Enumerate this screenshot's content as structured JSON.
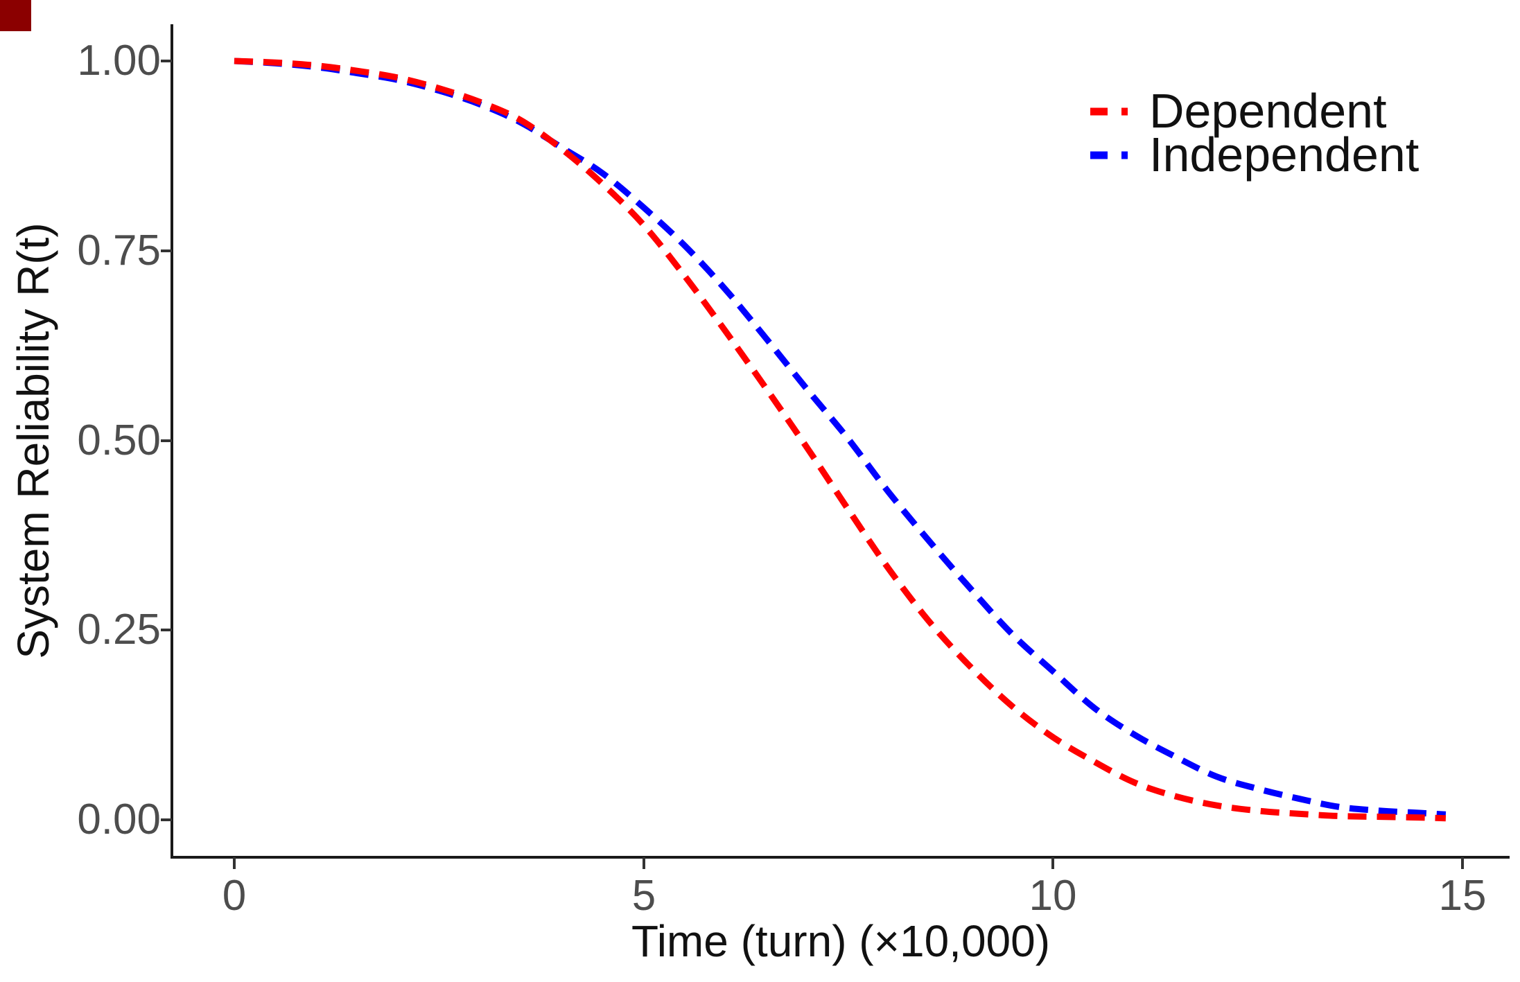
{
  "figure": {
    "background_color": "#ffffff",
    "corner_marker_color": "#8B0000",
    "axis_line_color": "#1a1a1a",
    "tick_color": "#333333",
    "tick_label_color": "#4d4d4d",
    "title_color": "#111111"
  },
  "chart_data": {
    "type": "line",
    "title": "",
    "xlabel": "Time (turn) (×10,000)",
    "ylabel": "System Reliability R(t)",
    "line_style": "dashed",
    "grid": false,
    "legend_position": "inside-top-right",
    "xlim": [
      -0.8,
      15.6
    ],
    "ylim": [
      -0.05,
      1.05
    ],
    "x_ticks": [
      0,
      5,
      10,
      15
    ],
    "x_tick_labels": [
      "0",
      "5",
      "10",
      "15"
    ],
    "y_ticks": [
      1.0,
      0.75,
      0.5,
      0.25,
      0.0
    ],
    "y_tick_labels": [
      "1.00",
      "0.75",
      "0.50",
      "0.25",
      "0.00"
    ],
    "t": [
      0,
      0.5,
      1,
      1.5,
      2,
      2.5,
      3,
      3.5,
      4,
      4.5,
      5,
      5.5,
      6,
      6.5,
      7,
      7.5,
      8,
      8.5,
      9,
      9.5,
      10,
      10.5,
      11,
      11.5,
      12,
      12.5,
      13,
      13.5,
      14,
      14.5,
      14.8
    ],
    "series": [
      {
        "name": "Dependent",
        "color": "#FF0000",
        "values": [
          1.0,
          0.998,
          0.994,
          0.987,
          0.978,
          0.964,
          0.946,
          0.922,
          0.884,
          0.838,
          0.784,
          0.717,
          0.644,
          0.568,
          0.49,
          0.409,
          0.33,
          0.26,
          0.201,
          0.15,
          0.109,
          0.077,
          0.049,
          0.031,
          0.019,
          0.012,
          0.008,
          0.005,
          0.004,
          0.003,
          0.002
        ]
      },
      {
        "name": "Independent",
        "color": "#0000FF",
        "values": [
          1.0,
          0.997,
          0.992,
          0.984,
          0.975,
          0.961,
          0.943,
          0.919,
          0.886,
          0.852,
          0.807,
          0.757,
          0.699,
          0.634,
          0.567,
          0.502,
          0.431,
          0.366,
          0.304,
          0.245,
          0.196,
          0.148,
          0.112,
          0.083,
          0.057,
          0.041,
          0.028,
          0.017,
          0.012,
          0.009,
          0.007
        ]
      }
    ]
  }
}
